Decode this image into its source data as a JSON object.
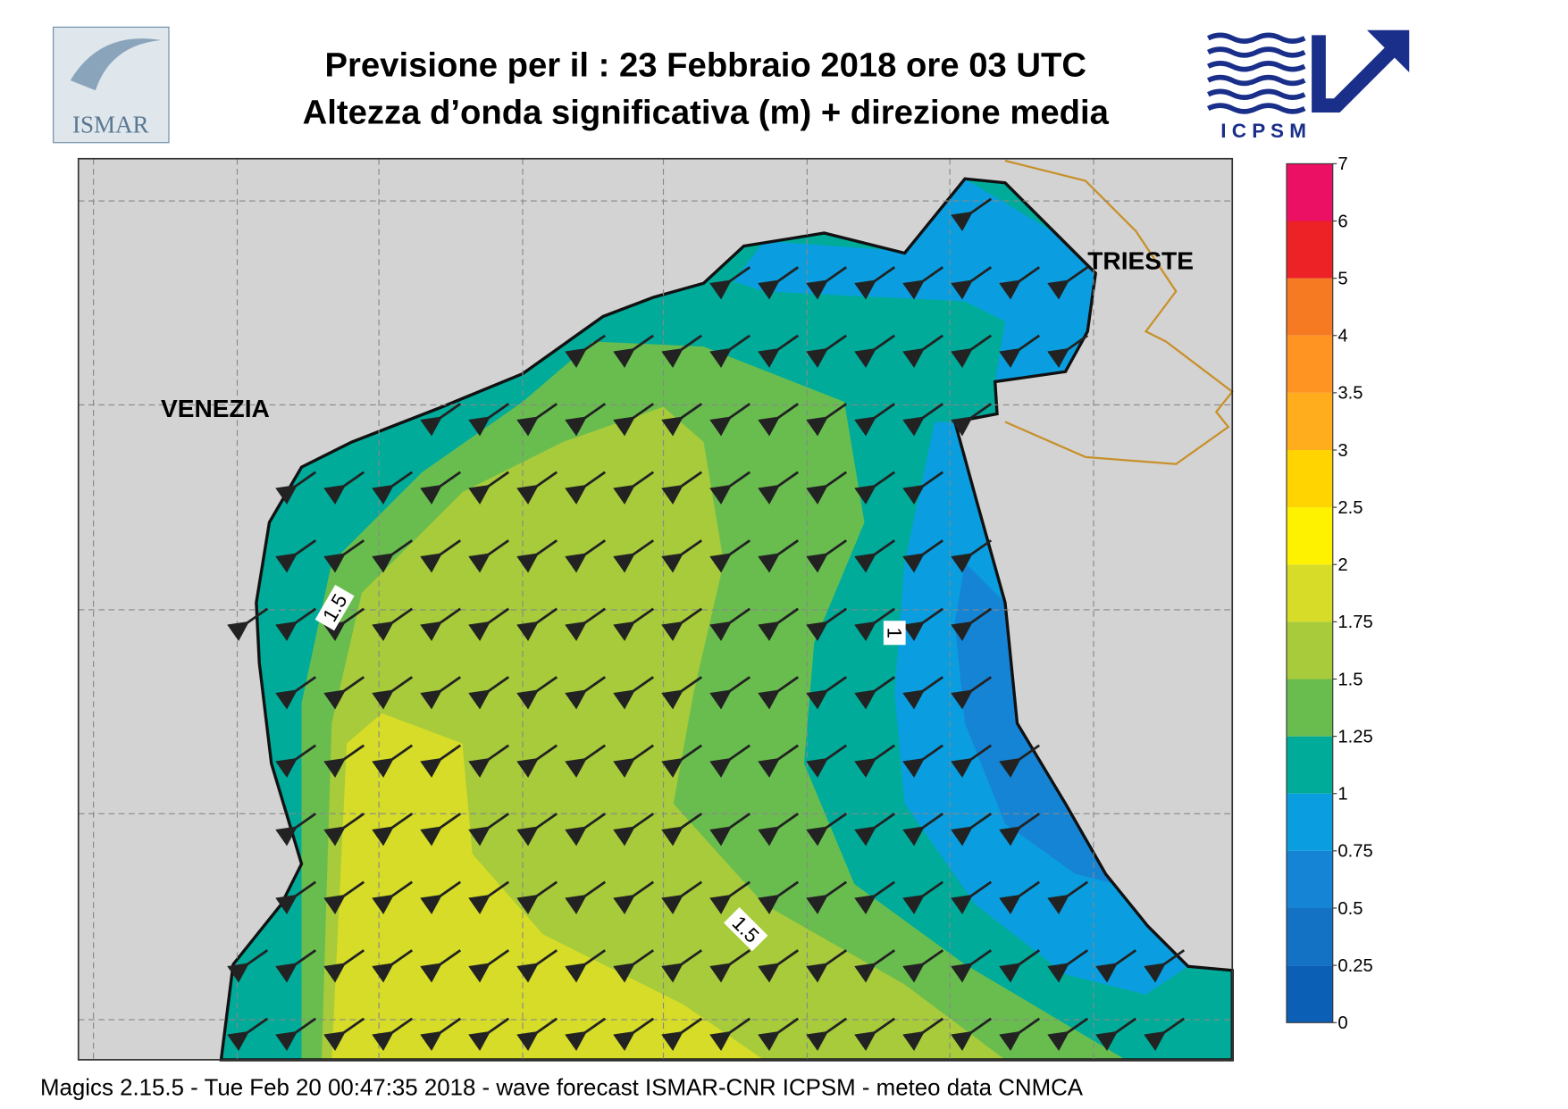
{
  "header": {
    "title": "Previsione per il  :  23  Febbraio 2018   ore 03 UTC",
    "subtitle": "Altezza d’onda significativa (m) + direzione media",
    "logo_left": "ISMAR",
    "logo_right": "I C P S M"
  },
  "map": {
    "cities": [
      "VENEZIA",
      "TRIESTE"
    ],
    "contour_labels": [
      "1.5",
      "1",
      "1.5"
    ]
  },
  "legend": {
    "levels": [
      0,
      0.25,
      0.5,
      0.75,
      1,
      1.25,
      1.5,
      1.75,
      2,
      2.5,
      3,
      3.5,
      4,
      5,
      6,
      7
    ],
    "colors": [
      "#0b5fb5",
      "#1472c4",
      "#1584d4",
      "#0a9ee0",
      "#00ab9a",
      "#69bd4f",
      "#a7cb3a",
      "#d6dc28",
      "#fff200",
      "#ffd400",
      "#ffad1c",
      "#ff9423",
      "#f57a22",
      "#ec2227",
      "#ec1064"
    ]
  },
  "footer": "Magics 2.15.5 - Tue Feb 20 00:47:35 2018 - wave forecast  ISMAR-CNR  ICPSM - meteo data    CNMCA"
}
